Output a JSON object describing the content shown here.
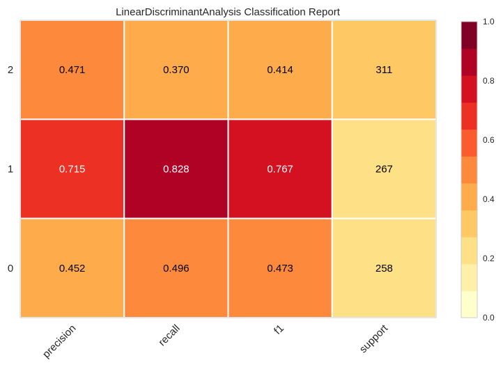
{
  "chart_data": {
    "type": "heatmap",
    "title": "LinearDiscriminantAnalysis Classification Report",
    "columns": [
      "precision",
      "recall",
      "f1",
      "support"
    ],
    "rows": [
      "2",
      "1",
      "0"
    ],
    "values": [
      [
        0.471,
        0.37,
        0.414,
        311
      ],
      [
        0.715,
        0.828,
        0.767,
        267
      ],
      [
        0.452,
        0.496,
        0.473,
        258
      ]
    ],
    "cell_labels": [
      [
        "0.471",
        "0.370",
        "0.414",
        "311"
      ],
      [
        "0.715",
        "0.828",
        "0.767",
        "267"
      ],
      [
        "0.452",
        "0.496",
        "0.473",
        "258"
      ]
    ],
    "colorbar": {
      "range": [
        0.0,
        1.0
      ],
      "ticks": [
        "0.0",
        "0.2",
        "0.4",
        "0.6",
        "0.8",
        "1.0"
      ],
      "colors": [
        "#ffffcc",
        "#fff0a9",
        "#fee087",
        "#fec965",
        "#feab4b",
        "#fd893c",
        "#fa5c2e",
        "#ec3023",
        "#d31121",
        "#af0225",
        "#800026"
      ]
    },
    "grid": false
  }
}
